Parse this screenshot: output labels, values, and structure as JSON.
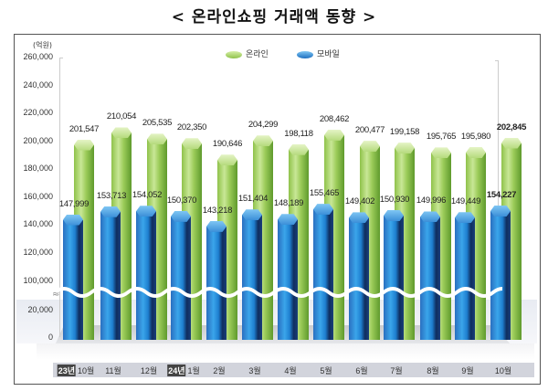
{
  "title": "< 온라인쇼핑 거래액 동향 >",
  "unit_label": "(억원)",
  "legend": [
    {
      "label": "온라인",
      "color": "#9ccc5a"
    },
    {
      "label": "모바일",
      "color": "#2a8ad8"
    }
  ],
  "yaxis": {
    "ticks": [
      "260,000",
      "240,000",
      "220,000",
      "200,000",
      "180,000",
      "160,000",
      "140,000",
      "120,000",
      "100,000",
      "20,000",
      "0"
    ],
    "break_symbol": "≈"
  },
  "xaxis": {
    "labels": [
      {
        "year": "23년",
        "month": "10월"
      },
      {
        "year": "",
        "month": "11월"
      },
      {
        "year": "",
        "month": "12월"
      },
      {
        "year": "24년",
        "month": "1월"
      },
      {
        "year": "",
        "month": "2월"
      },
      {
        "year": "",
        "month": "3월"
      },
      {
        "year": "",
        "month": "4월"
      },
      {
        "year": "",
        "month": "5월"
      },
      {
        "year": "",
        "month": "6월"
      },
      {
        "year": "",
        "month": "7월"
      },
      {
        "year": "",
        "month": "8월"
      },
      {
        "year": "",
        "month": "9월"
      },
      {
        "year": "",
        "month": "10월"
      }
    ]
  },
  "online_labels": [
    "201,547",
    "210,054",
    "205,535",
    "202,350",
    "190,646",
    "204,299",
    "198,118",
    "208,462",
    "200,477",
    "199,158",
    "195,765",
    "195,980",
    "202,845"
  ],
  "mobile_labels": [
    "147,999",
    "153,713",
    "154,052",
    "150,370",
    "143,218",
    "151,404",
    "148,189",
    "155,465",
    "149,402",
    "150,930",
    "149,996",
    "149,449",
    "154,227"
  ],
  "chart_data": {
    "type": "bar",
    "title": "< 온라인쇼핑 거래액 동향 >",
    "xlabel": "",
    "ylabel": "(억원)",
    "categories": [
      "23년 10월",
      "11월",
      "12월",
      "24년 1월",
      "2월",
      "3월",
      "4월",
      "5월",
      "6월",
      "7월",
      "8월",
      "9월",
      "10월"
    ],
    "series": [
      {
        "name": "온라인",
        "values": [
          201547,
          210054,
          205535,
          202350,
          190646,
          204299,
          198118,
          208462,
          200477,
          199158,
          195765,
          195980,
          202845
        ]
      },
      {
        "name": "모바일",
        "values": [
          147999,
          153713,
          154052,
          150370,
          143218,
          151404,
          148189,
          155465,
          149402,
          150930,
          149996,
          149449,
          154227
        ]
      }
    ],
    "ylim": [
      0,
      260000
    ],
    "axis_break": [
      20000,
      100000
    ],
    "yticks": [
      0,
      20000,
      100000,
      120000,
      140000,
      160000,
      180000,
      200000,
      220000,
      240000,
      260000
    ],
    "grid": false,
    "legend_position": "top-center",
    "highlight_last": true
  }
}
